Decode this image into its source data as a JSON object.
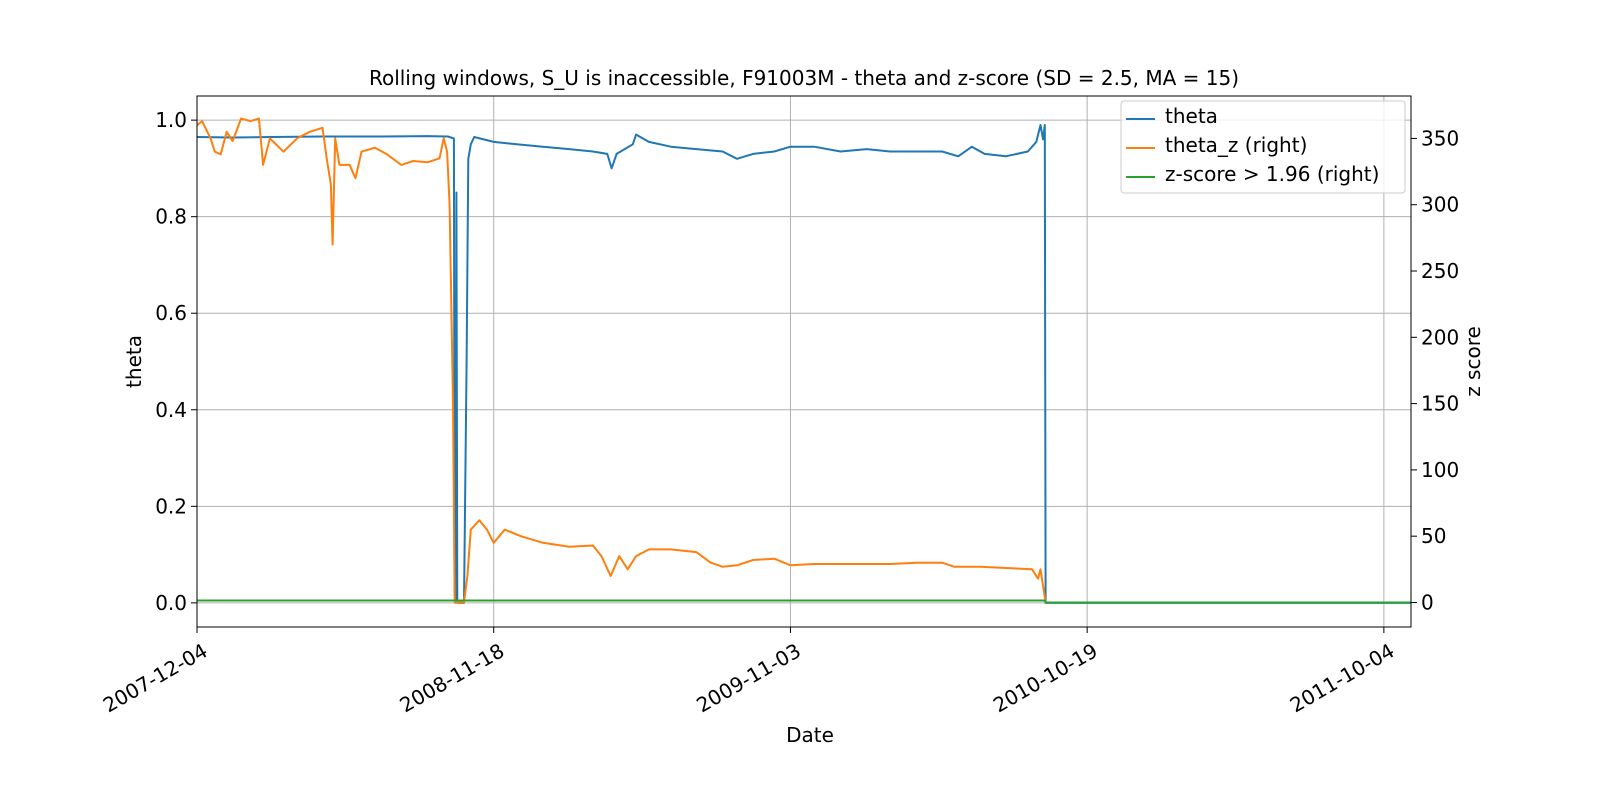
{
  "chart_data": {
    "type": "line",
    "title": "Rolling windows, S_U is inaccessible, F91003M - theta and z-score (SD = 2.5, MA = 15)",
    "xlabel": "Date",
    "ylabel": "theta",
    "y2label": "z score",
    "x_range": [
      "2007-12-04",
      "2011-11-05"
    ],
    "x_ticks": [
      "2007-12-04",
      "2008-11-18",
      "2009-11-03",
      "2010-10-19",
      "2011-10-04"
    ],
    "ylim": [
      -0.05,
      1.05
    ],
    "y_ticks": [
      "0.0",
      "0.2",
      "0.4",
      "0.6",
      "0.8",
      "1.0"
    ],
    "y2lim": [
      -18.5,
      382
    ],
    "y2_ticks": [
      "0",
      "50",
      "100",
      "150",
      "200",
      "250",
      "300",
      "350"
    ],
    "grid": true,
    "legend_position": "top-right",
    "colors": {
      "theta": "#1f77b4",
      "theta_z": "#ff7f0e",
      "zflag": "#2ca02c"
    },
    "series": [
      {
        "name": "theta",
        "axis": "left",
        "points": [
          [
            "2007-12-04",
            0.965
          ],
          [
            "2008-01-15",
            0.964
          ],
          [
            "2008-03-01",
            0.965
          ],
          [
            "2008-05-01",
            0.966
          ],
          [
            "2008-07-01",
            0.966
          ],
          [
            "2008-09-01",
            0.967
          ],
          [
            "2008-09-25",
            0.966
          ],
          [
            "2008-10-02",
            0.962
          ],
          [
            "2008-10-03",
            0.02
          ],
          [
            "2008-10-04",
            0.0
          ],
          [
            "2008-10-05",
            0.85
          ],
          [
            "2008-10-06",
            0.0
          ],
          [
            "2008-10-12",
            0.0
          ],
          [
            "2008-10-14",
            0.0
          ],
          [
            "2008-10-17",
            0.5
          ],
          [
            "2008-10-19",
            0.92
          ],
          [
            "2008-10-22",
            0.95
          ],
          [
            "2008-10-26",
            0.965
          ],
          [
            "2008-11-18",
            0.955
          ],
          [
            "2008-12-15",
            0.95
          ],
          [
            "2009-01-15",
            0.945
          ],
          [
            "2009-02-15",
            0.94
          ],
          [
            "2009-03-15",
            0.935
          ],
          [
            "2009-04-01",
            0.93
          ],
          [
            "2009-04-06",
            0.9
          ],
          [
            "2009-04-12",
            0.93
          ],
          [
            "2009-05-01",
            0.95
          ],
          [
            "2009-05-05",
            0.97
          ],
          [
            "2009-05-20",
            0.955
          ],
          [
            "2009-06-15",
            0.945
          ],
          [
            "2009-07-15",
            0.94
          ],
          [
            "2009-08-15",
            0.935
          ],
          [
            "2009-09-01",
            0.92
          ],
          [
            "2009-09-20",
            0.93
          ],
          [
            "2009-10-15",
            0.935
          ],
          [
            "2009-11-03",
            0.945
          ],
          [
            "2009-12-01",
            0.945
          ],
          [
            "2010-01-01",
            0.935
          ],
          [
            "2010-02-01",
            0.94
          ],
          [
            "2010-03-01",
            0.935
          ],
          [
            "2010-04-01",
            0.935
          ],
          [
            "2010-05-01",
            0.935
          ],
          [
            "2010-05-20",
            0.925
          ],
          [
            "2010-06-05",
            0.945
          ],
          [
            "2010-06-20",
            0.93
          ],
          [
            "2010-07-15",
            0.925
          ],
          [
            "2010-08-10",
            0.935
          ],
          [
            "2010-08-20",
            0.955
          ],
          [
            "2010-08-25",
            0.99
          ],
          [
            "2010-08-28",
            0.96
          ],
          [
            "2010-08-30",
            0.99
          ],
          [
            "2010-08-31",
            0.0
          ],
          [
            "2010-10-19",
            0.0
          ],
          [
            "2011-06-01",
            0.0
          ],
          [
            "2011-11-05",
            0.0
          ]
        ]
      },
      {
        "name": "theta_z (right)",
        "axis": "right",
        "points": [
          [
            "2007-12-04",
            360
          ],
          [
            "2007-12-10",
            363
          ],
          [
            "2007-12-20",
            350
          ],
          [
            "2007-12-25",
            340
          ],
          [
            "2008-01-01",
            338
          ],
          [
            "2008-01-08",
            355
          ],
          [
            "2008-01-15",
            348
          ],
          [
            "2008-01-25",
            365
          ],
          [
            "2008-02-05",
            363
          ],
          [
            "2008-02-15",
            365
          ],
          [
            "2008-02-20",
            330
          ],
          [
            "2008-02-28",
            350
          ],
          [
            "2008-03-15",
            340
          ],
          [
            "2008-03-31",
            350
          ],
          [
            "2008-04-15",
            355
          ],
          [
            "2008-04-30",
            358
          ],
          [
            "2008-05-05",
            335
          ],
          [
            "2008-05-10",
            315
          ],
          [
            "2008-05-12",
            270
          ],
          [
            "2008-05-15",
            350
          ],
          [
            "2008-05-20",
            330
          ],
          [
            "2008-06-01",
            330
          ],
          [
            "2008-06-08",
            320
          ],
          [
            "2008-06-15",
            340
          ],
          [
            "2008-07-01",
            343
          ],
          [
            "2008-07-15",
            338
          ],
          [
            "2008-08-01",
            330
          ],
          [
            "2008-08-15",
            333
          ],
          [
            "2008-09-01",
            332
          ],
          [
            "2008-09-15",
            335
          ],
          [
            "2008-09-20",
            350
          ],
          [
            "2008-09-24",
            340
          ],
          [
            "2008-09-27",
            300
          ],
          [
            "2008-10-01",
            150
          ],
          [
            "2008-10-03",
            0
          ],
          [
            "2008-10-14",
            0
          ],
          [
            "2008-10-18",
            20
          ],
          [
            "2008-10-22",
            55
          ],
          [
            "2008-11-01",
            62
          ],
          [
            "2008-11-10",
            55
          ],
          [
            "2008-11-18",
            45
          ],
          [
            "2008-12-01",
            55
          ],
          [
            "2008-12-20",
            50
          ],
          [
            "2009-01-15",
            45
          ],
          [
            "2009-02-15",
            42
          ],
          [
            "2009-03-15",
            43
          ],
          [
            "2009-03-25",
            35
          ],
          [
            "2009-04-05",
            20
          ],
          [
            "2009-04-15",
            35
          ],
          [
            "2009-04-25",
            25
          ],
          [
            "2009-05-05",
            35
          ],
          [
            "2009-05-20",
            40
          ],
          [
            "2009-06-15",
            40
          ],
          [
            "2009-07-15",
            38
          ],
          [
            "2009-08-01",
            30
          ],
          [
            "2009-08-15",
            27
          ],
          [
            "2009-09-01",
            28
          ],
          [
            "2009-09-20",
            32
          ],
          [
            "2009-10-15",
            33
          ],
          [
            "2009-11-03",
            28
          ],
          [
            "2009-12-01",
            29
          ],
          [
            "2010-01-01",
            29
          ],
          [
            "2010-02-01",
            29
          ],
          [
            "2010-03-01",
            29
          ],
          [
            "2010-04-01",
            30
          ],
          [
            "2010-05-01",
            30
          ],
          [
            "2010-05-15",
            27
          ],
          [
            "2010-06-15",
            27
          ],
          [
            "2010-07-15",
            26
          ],
          [
            "2010-08-15",
            25
          ],
          [
            "2010-08-22",
            18
          ],
          [
            "2010-08-25",
            25
          ],
          [
            "2010-08-31",
            0
          ],
          [
            "2010-10-19",
            0
          ],
          [
            "2011-11-05",
            0
          ]
        ]
      },
      {
        "name": "z-score > 1.96 (right)",
        "axis": "right",
        "points": [
          [
            "2007-12-04",
            1.5
          ],
          [
            "2010-08-30",
            1.5
          ],
          [
            "2010-08-31",
            0
          ],
          [
            "2011-11-05",
            0
          ]
        ]
      }
    ]
  }
}
